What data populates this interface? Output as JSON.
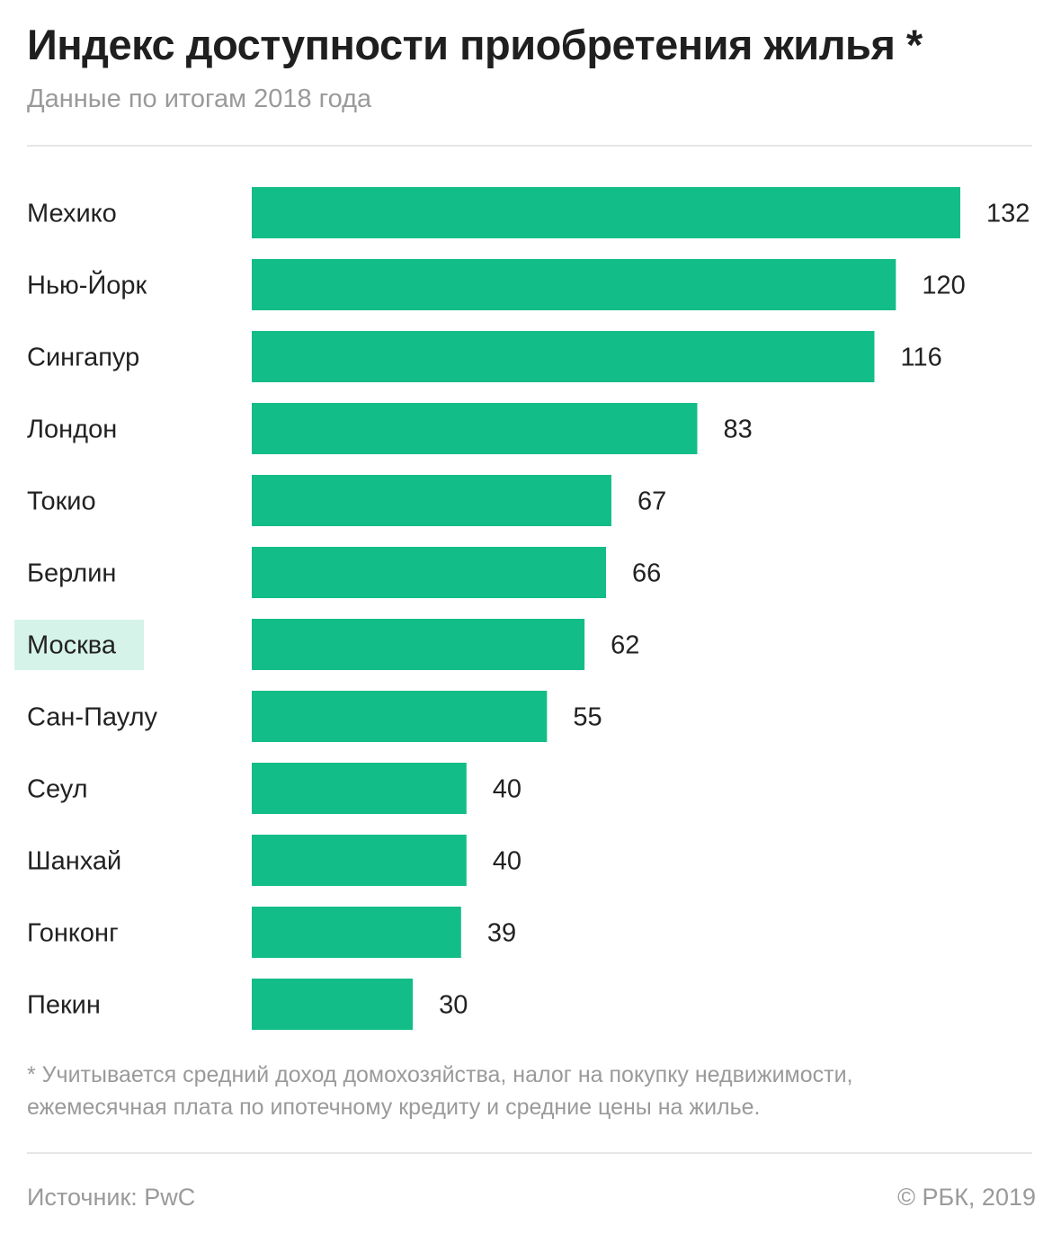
{
  "header": {
    "title": "Индекс доступности приобретения жилья *",
    "subtitle": "Данные по итогам 2018 года"
  },
  "chart_data": {
    "type": "bar",
    "orientation": "horizontal",
    "categories": [
      "Мехико",
      "Нью-Йорк",
      "Сингапур",
      "Лондон",
      "Токио",
      "Берлин",
      "Москва",
      "Сан-Паулу",
      "Сеул",
      "Шанхай",
      "Гонконг",
      "Пекин"
    ],
    "values": [
      132,
      120,
      116,
      83,
      67,
      66,
      62,
      55,
      40,
      40,
      39,
      30
    ],
    "highlight_category": "Москва",
    "title": "Индекс доступности приобретения жилья *",
    "subtitle": "Данные по итогам 2018 года",
    "xlabel": "",
    "ylabel": "",
    "xlim": [
      0,
      132
    ],
    "grid": false,
    "legend": "none",
    "data_labels": true,
    "colors": {
      "bar": "#13bd88",
      "highlight_bg": "#d6f3e9",
      "label": "#222222"
    }
  },
  "footnote": {
    "line1": "* Учитывается средний доход домохозяйства, налог на покупку недвижимости,",
    "line2": "ежемесячная плата по ипотечному кредиту и средние цены на жилье."
  },
  "footer": {
    "source": "Источник: PwC",
    "copyright": "© РБК, 2019"
  }
}
